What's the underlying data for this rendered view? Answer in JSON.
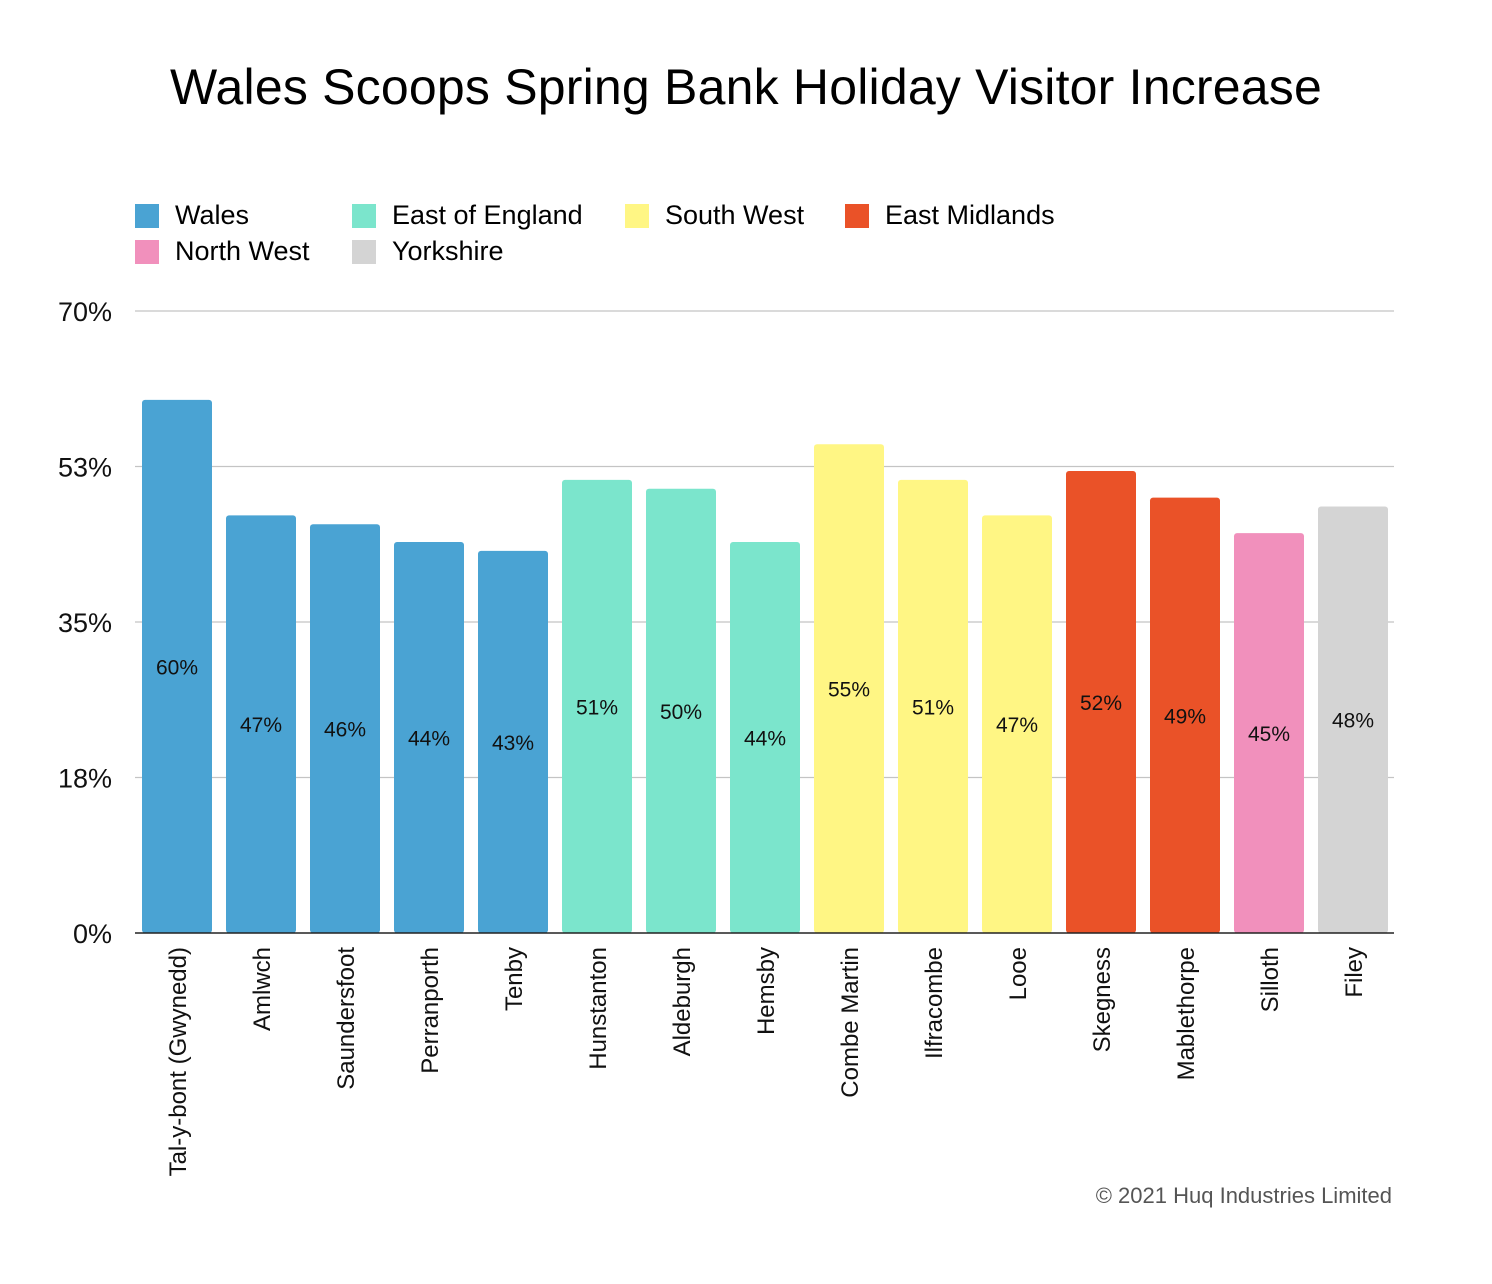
{
  "chart_data": {
    "type": "bar",
    "title": "Wales Scoops Spring Bank Holiday Visitor Increase",
    "xlabel": "",
    "ylabel": "",
    "ylim": [
      0,
      70
    ],
    "yticks": [
      {
        "value": 0,
        "label": "0%"
      },
      {
        "value": 17.5,
        "label": "18%"
      },
      {
        "value": 35,
        "label": "35%"
      },
      {
        "value": 52.5,
        "label": "53%"
      },
      {
        "value": 70,
        "label": "70%"
      }
    ],
    "grid": true,
    "legend_position": "top-left",
    "legend": [
      {
        "name": "Wales",
        "color": "#4aa3d3"
      },
      {
        "name": "East of England",
        "color": "#7be5cc"
      },
      {
        "name": "South West",
        "color": "#fff684"
      },
      {
        "name": "East Midlands",
        "color": "#ea5228"
      },
      {
        "name": "North West",
        "color": "#f190bc"
      },
      {
        "name": "Yorkshire",
        "color": "#d4d4d4"
      }
    ],
    "categories": [
      "Tal-y-bont (Gwynedd)",
      "Amlwch",
      "Saundersfoot",
      "Perranporth",
      "Tenby",
      "Hunstanton",
      "Aldeburgh",
      "Hemsby",
      "Combe Martin",
      "Ilfracombe",
      "Looe",
      "Skegness",
      "Mablethorpe",
      "Silloth",
      "Filey"
    ],
    "values": [
      60,
      47,
      46,
      44,
      43,
      51,
      50,
      44,
      55,
      51,
      47,
      52,
      49,
      45,
      48
    ],
    "data_labels": [
      "60%",
      "47%",
      "46%",
      "44%",
      "43%",
      "51%",
      "50%",
      "44%",
      "55%",
      "51%",
      "47%",
      "52%",
      "49%",
      "45%",
      "48%"
    ],
    "bar_colors": [
      "#4aa3d3",
      "#4aa3d3",
      "#4aa3d3",
      "#4aa3d3",
      "#4aa3d3",
      "#7be5cc",
      "#7be5cc",
      "#7be5cc",
      "#fff684",
      "#fff684",
      "#fff684",
      "#ea5228",
      "#ea5228",
      "#f190bc",
      "#d4d4d4"
    ]
  },
  "footer": {
    "copyright": "©  2021 Huq Industries Limited"
  }
}
